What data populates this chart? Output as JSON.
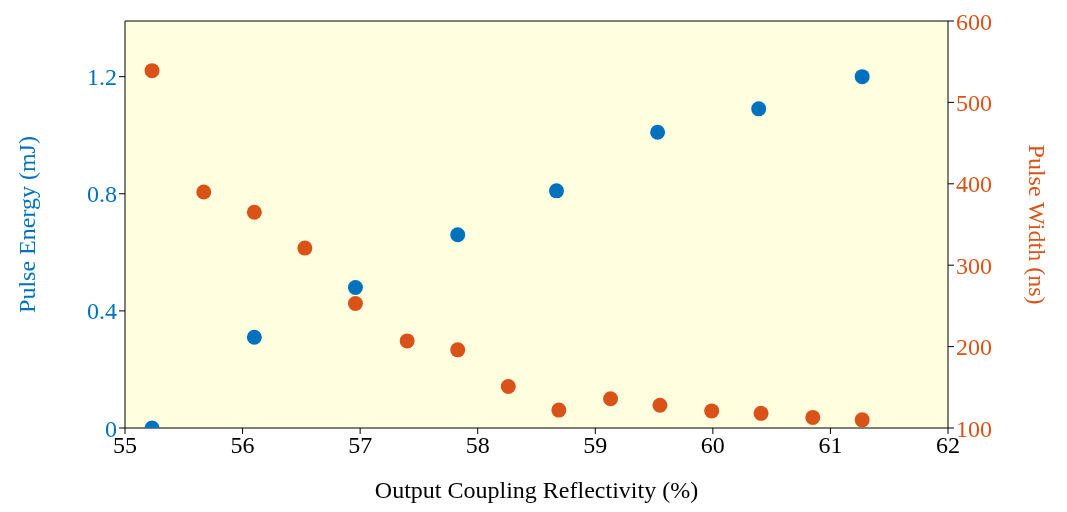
{
  "chart_data": {
    "type": "scatter",
    "xlabel": "Output Coupling Reflectivity (%)",
    "ylabel": "Pulse Energy (mJ)",
    "y2label": "Pulse Width (ns)",
    "xlim": [
      55,
      62
    ],
    "xticks": [
      55,
      56,
      57,
      58,
      59,
      60,
      61,
      62
    ],
    "ylim": [
      0,
      1.39
    ],
    "yticks": [
      0,
      0.4,
      0.8,
      1.2
    ],
    "y2lim": [
      100,
      600
    ],
    "y2ticks": [
      100,
      200,
      300,
      400,
      500,
      600
    ],
    "marker": "circle",
    "grid": false,
    "legend": false,
    "series": [
      {
        "color": "#0072bd",
        "x": [
          55.23,
          56.1,
          56.96,
          57.83,
          58.67,
          59.53,
          60.39,
          61.27
        ],
        "values": [
          0,
          0.31,
          0.48,
          0.66,
          0.81,
          1.01,
          1.09,
          1.2
        ]
      },
      {
        "color": "#d95319",
        "axis": "y2",
        "x": [
          55.23,
          55.67,
          56.1,
          56.53,
          56.96,
          57.4,
          57.83,
          58.26,
          58.69,
          59.13,
          59.55,
          59.99,
          60.41,
          60.85,
          61.27
        ],
        "values": [
          539,
          390,
          365,
          321,
          253,
          207,
          196,
          151,
          122,
          136,
          128,
          121,
          118,
          113,
          110
        ]
      }
    ]
  }
}
